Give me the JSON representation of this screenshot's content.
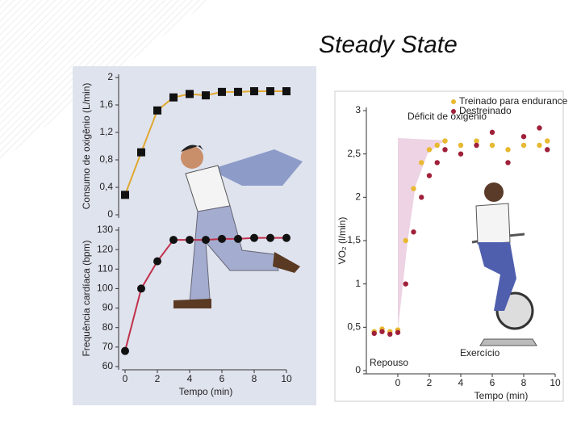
{
  "title": "Steady State",
  "chart_data": [
    {
      "type": "line",
      "y_label": "Consumo de oxigênio (L/min)",
      "x": [
        0,
        1,
        2,
        3,
        4,
        5,
        6,
        7,
        8,
        9,
        10
      ],
      "xlim": [
        0,
        10
      ],
      "ylim": [
        0,
        2
      ],
      "yticks": [
        0,
        {
          "value": 0.4,
          "label": "0,4"
        },
        {
          "value": 0.8,
          "label": "0,8"
        },
        {
          "value": 1.2,
          "label": "1,2"
        },
        {
          "value": 1.6,
          "label": "1,6"
        },
        2
      ],
      "series": [
        {
          "color": "#111111",
          "line_color": "#e0a830",
          "marker": "square",
          "values": [
            0.29,
            0.91,
            1.52,
            1.71,
            1.76,
            1.74,
            1.79,
            1.79,
            1.8,
            1.8,
            1.8
          ]
        }
      ]
    },
    {
      "type": "line",
      "y_label": "Frequência cardíaca (bpm)",
      "x_label": "Tempo (min)",
      "x": [
        0,
        1,
        2,
        3,
        4,
        5,
        6,
        7,
        8,
        9,
        10
      ],
      "xlim": [
        0,
        10
      ],
      "xticks": [
        0,
        2,
        4,
        6,
        8,
        10
      ],
      "ylim": [
        60,
        130
      ],
      "yticks": [
        60,
        70,
        80,
        90,
        100,
        110,
        120,
        130
      ],
      "series": [
        {
          "color": "#111111",
          "line_color": "#c0304a",
          "marker": "circle",
          "values": [
            68,
            100,
            114,
            125,
            125,
            125,
            125.5,
            125.5,
            126,
            126,
            126
          ]
        }
      ]
    },
    {
      "type": "scatter",
      "y_label": "VO₂ (l/min)",
      "x_label": "Tempo (min)",
      "xlim": [
        -2,
        10
      ],
      "xticks": [
        0,
        2,
        4,
        6,
        8,
        10
      ],
      "ylim": [
        0,
        3
      ],
      "yticks": [
        0,
        {
          "value": 0.5,
          "label": "0,5"
        },
        1,
        {
          "value": 1.5,
          "label": "1,5"
        },
        2,
        {
          "value": 2.5,
          "label": "2,5"
        },
        3
      ],
      "annotations": [
        "Déficit de oxigênio",
        "Repouso",
        "Exercício"
      ],
      "legend": "top-right",
      "series": [
        {
          "name": "Treinado para endurance",
          "color": "#e8b830",
          "x": [
            -1.5,
            -1,
            -0.5,
            0,
            0.5,
            1,
            1.5,
            2,
            2.5,
            3,
            4,
            5,
            6,
            7,
            8,
            9,
            9.5
          ],
          "values": [
            0.45,
            0.48,
            0.45,
            0.47,
            1.5,
            2.1,
            2.4,
            2.55,
            2.6,
            2.65,
            2.6,
            2.65,
            2.6,
            2.55,
            2.6,
            2.6,
            2.65
          ]
        },
        {
          "name": "Destreinado",
          "color": "#a0203a",
          "x": [
            -1.5,
            -1,
            -0.5,
            0,
            0.5,
            1,
            1.5,
            2,
            2.5,
            3,
            4,
            5,
            6,
            7,
            8,
            9,
            9.5
          ],
          "values": [
            0.43,
            0.45,
            0.42,
            0.44,
            1.0,
            1.6,
            2.0,
            2.25,
            2.4,
            2.55,
            2.5,
            2.6,
            2.75,
            2.4,
            2.7,
            2.8,
            2.55
          ]
        }
      ]
    }
  ]
}
